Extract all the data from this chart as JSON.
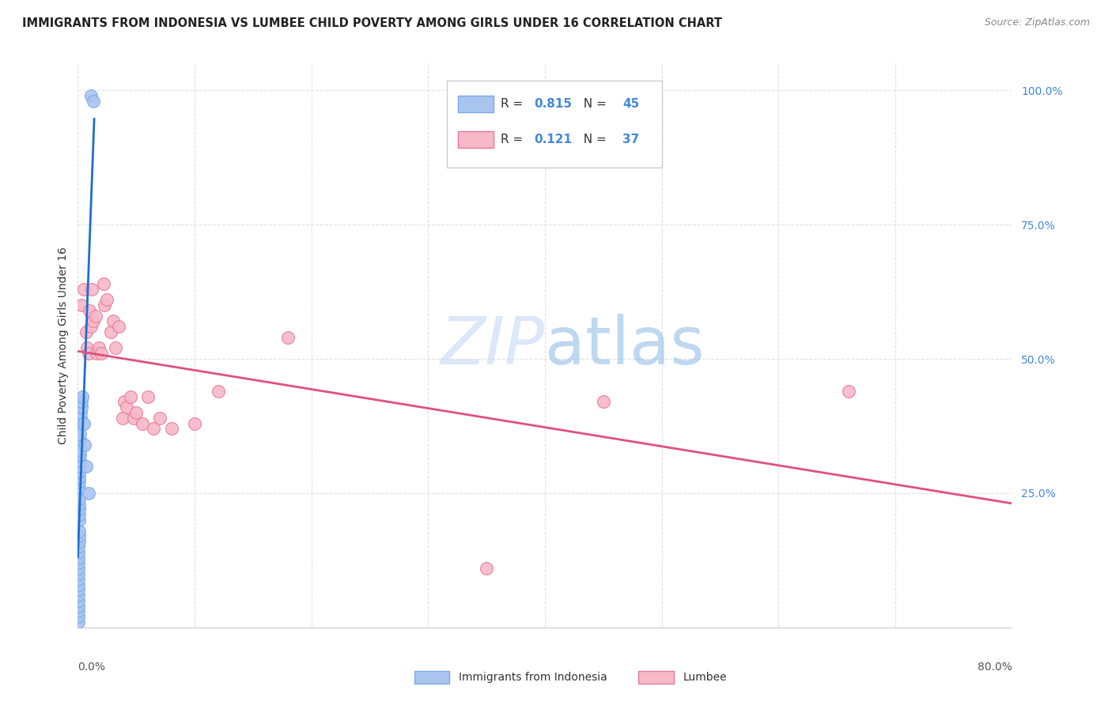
{
  "title": "IMMIGRANTS FROM INDONESIA VS LUMBEE CHILD POVERTY AMONG GIRLS UNDER 16 CORRELATION CHART",
  "source": "Source: ZipAtlas.com",
  "ylabel": "Child Poverty Among Girls Under 16",
  "r_indonesia": 0.815,
  "n_indonesia": 45,
  "r_lumbee": 0.121,
  "n_lumbee": 37,
  "watermark": "ZIPatlas",
  "background_color": "#ffffff",
  "grid_color": "#e0e0e0",
  "indonesia_color": "#aac4f0",
  "indonesia_edge_color": "#7aaae8",
  "lumbee_color": "#f7b8c8",
  "lumbee_edge_color": "#e87898",
  "trendline_indonesia_color": "#1a6fd4",
  "trendline_lumbee_color": "#e05080",
  "ind_x": [
    0.0002,
    0.0003,
    0.0003,
    0.0004,
    0.0004,
    0.0004,
    0.0005,
    0.0005,
    0.0005,
    0.0005,
    0.0006,
    0.0006,
    0.0006,
    0.0007,
    0.0007,
    0.0008,
    0.0008,
    0.0009,
    0.0009,
    0.001,
    0.001,
    0.001,
    0.001,
    0.001,
    0.0012,
    0.0012,
    0.0013,
    0.0014,
    0.0015,
    0.0016,
    0.0017,
    0.0018,
    0.002,
    0.002,
    0.0022,
    0.0025,
    0.003,
    0.003,
    0.004,
    0.005,
    0.006,
    0.007,
    0.009,
    0.011,
    0.013
  ],
  "ind_y": [
    0.01,
    0.02,
    0.03,
    0.04,
    0.05,
    0.06,
    0.07,
    0.08,
    0.09,
    0.1,
    0.11,
    0.12,
    0.13,
    0.14,
    0.15,
    0.16,
    0.17,
    0.18,
    0.2,
    0.21,
    0.22,
    0.23,
    0.24,
    0.26,
    0.27,
    0.28,
    0.29,
    0.3,
    0.31,
    0.32,
    0.33,
    0.35,
    0.36,
    0.38,
    0.39,
    0.4,
    0.41,
    0.42,
    0.43,
    0.38,
    0.34,
    0.3,
    0.25,
    0.99,
    0.98
  ],
  "lum_x": [
    0.003,
    0.005,
    0.007,
    0.008,
    0.009,
    0.01,
    0.011,
    0.012,
    0.013,
    0.015,
    0.016,
    0.018,
    0.02,
    0.022,
    0.023,
    0.025,
    0.028,
    0.03,
    0.032,
    0.035,
    0.038,
    0.04,
    0.042,
    0.045,
    0.048,
    0.05,
    0.055,
    0.06,
    0.065,
    0.07,
    0.08,
    0.1,
    0.12,
    0.18,
    0.35,
    0.45,
    0.66
  ],
  "lum_y": [
    0.6,
    0.63,
    0.55,
    0.52,
    0.51,
    0.59,
    0.56,
    0.63,
    0.57,
    0.58,
    0.51,
    0.52,
    0.51,
    0.64,
    0.6,
    0.61,
    0.55,
    0.57,
    0.52,
    0.56,
    0.39,
    0.42,
    0.41,
    0.43,
    0.39,
    0.4,
    0.38,
    0.43,
    0.37,
    0.39,
    0.37,
    0.38,
    0.44,
    0.54,
    0.11,
    0.42,
    0.44
  ],
  "x_max": 0.8,
  "y_max": 1.05,
  "ytick_vals": [
    0.25,
    0.5,
    0.75,
    1.0
  ],
  "ytick_labels": [
    "25.0%",
    "50.0%",
    "75.0%",
    "100.0%"
  ]
}
